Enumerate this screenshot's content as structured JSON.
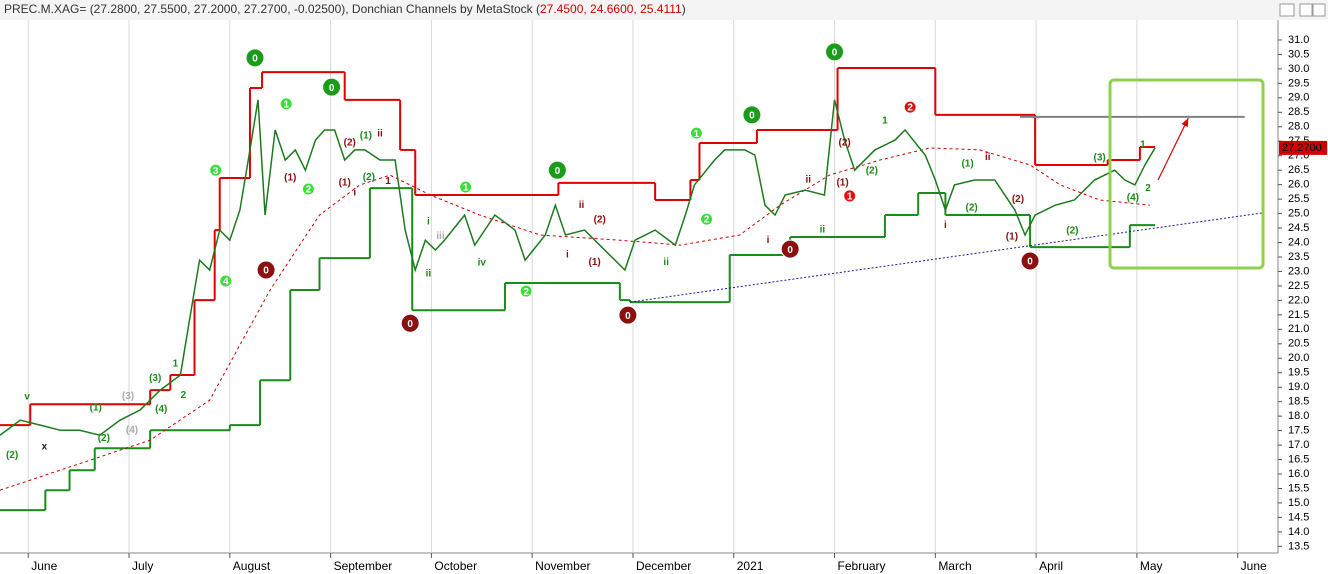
{
  "chart_data": {
    "type": "price",
    "title": "PREC.M.XAG= (27.2800, 27.5500, 27.2000, 27.2700, -0.02500), Donchian Channels by MetaStock (",
    "indicator_values": "27.4500, 24.6600, 25.4111",
    "title_end": ")",
    "last_price": {
      "value": 27.27,
      "label": "27.2700"
    },
    "xlim": [
      5.72,
      18.4
    ],
    "ylim": [
      13.27,
      31.69
    ],
    "grid": true,
    "xticks": [
      {
        "value": 6,
        "label": "June"
      },
      {
        "value": 7,
        "label": "July"
      },
      {
        "value": 8,
        "label": "August"
      },
      {
        "value": 9,
        "label": "September"
      },
      {
        "value": 10,
        "label": "October"
      },
      {
        "value": 11,
        "label": "November"
      },
      {
        "value": 12,
        "label": "December"
      },
      {
        "value": 13,
        "label": "2021"
      },
      {
        "value": 14,
        "label": "February"
      },
      {
        "value": 15,
        "label": "March"
      },
      {
        "value": 16,
        "label": "April"
      },
      {
        "value": 17,
        "label": "May"
      },
      {
        "value": 18,
        "label": "June"
      }
    ],
    "yticks": [
      {
        "value": 31,
        "label": "31.0"
      },
      30.5,
      {
        "value": 30,
        "label": "30.0"
      },
      29.5,
      {
        "value": 29,
        "label": "29.0"
      },
      28.5,
      {
        "value": 28,
        "label": "28.0"
      },
      27.5,
      {
        "value": 27,
        "label": "27.0"
      },
      26.5,
      {
        "value": 26,
        "label": "26.0"
      },
      25.5,
      {
        "value": 25,
        "label": "25.0"
      },
      24.5,
      {
        "value": 24,
        "label": "24.0"
      },
      23.5,
      {
        "value": 23,
        "label": "23.0"
      },
      22.5,
      {
        "value": 22,
        "label": "22.0"
      },
      21.5,
      {
        "value": 21,
        "label": "21.0"
      },
      20.5,
      {
        "value": 20,
        "label": "20.0"
      },
      19.5,
      {
        "value": 19,
        "label": "19.0"
      },
      18.5,
      {
        "value": 18,
        "label": "18.0"
      },
      17.5,
      {
        "value": 17,
        "label": "17.0"
      },
      16.5,
      {
        "value": 16,
        "label": "16.0"
      },
      15.5,
      {
        "value": 15,
        "label": "15.0"
      },
      14.5,
      {
        "value": 14,
        "label": "14.0"
      },
      13.5
    ],
    "series": [
      {
        "style": "step",
        "color": "#e00000",
        "width": 2,
        "x": [
          5.72,
          6.02,
          7.21,
          7.41,
          7.65,
          7.85,
          7.9,
          8.2,
          8.32,
          9.14,
          9.69,
          9.84,
          11.26,
          12.22,
          12.57,
          12.66,
          13.23,
          14.03,
          15.0,
          15.99,
          16.71,
          17.03,
          17.18
        ],
        "values": [
          17.69,
          18.41,
          18.9,
          19.42,
          22.01,
          24.43,
          26.23,
          29.34,
          29.89,
          28.93,
          27.2,
          25.64,
          26.06,
          25.47,
          26.16,
          27.44,
          27.89,
          30.03,
          28.41,
          26.68,
          26.85,
          27.3,
          27.3
        ]
      },
      {
        "style": "step",
        "color": "#1a8c1a",
        "width": 2,
        "x": [
          5.72,
          6.17,
          6.41,
          6.66,
          7.21,
          8.0,
          8.3,
          8.6,
          8.89,
          9.39,
          9.81,
          10.73,
          11.87,
          11.97,
          12.96,
          13.56,
          14.5,
          14.83,
          15.1,
          15.94,
          16.93,
          17.18
        ],
        "values": [
          14.75,
          15.44,
          16.13,
          16.89,
          17.51,
          17.69,
          19.24,
          22.36,
          23.46,
          25.88,
          21.66,
          22.6,
          22.01,
          21.94,
          23.57,
          24.19,
          24.95,
          25.71,
          24.95,
          23.84,
          24.6,
          24.6
        ]
      },
      {
        "style": "dashed",
        "color": "#cc0000",
        "width": 1,
        "x": [
          5.72,
          7.21,
          7.8,
          8.4,
          8.89,
          9.29,
          9.59,
          9.99,
          10.48,
          11.08,
          11.87,
          12.47,
          13.06,
          13.46,
          13.95,
          14.45,
          14.95,
          15.44,
          15.94,
          16.24,
          16.63,
          17.13
        ],
        "values": [
          15.44,
          17.17,
          18.55,
          22.36,
          24.95,
          25.99,
          26.33,
          25.64,
          24.95,
          24.26,
          24.08,
          23.91,
          24.26,
          25.29,
          26.33,
          26.85,
          27.27,
          27.2,
          26.68,
          25.99,
          25.47,
          25.29
        ]
      },
      {
        "style": "line",
        "color": "#1e7a1e",
        "width": 1.5,
        "x": [
          5.72,
          5.92,
          6.12,
          6.32,
          6.51,
          6.71,
          6.91,
          7.11,
          7.31,
          7.51,
          7.6,
          7.7,
          7.8,
          7.9,
          8.0,
          8.1,
          8.2,
          8.28,
          8.35,
          8.45,
          8.55,
          8.65,
          8.75,
          8.85,
          8.94,
          9.04,
          9.14,
          9.24,
          9.34,
          9.49,
          9.64,
          9.74,
          9.84,
          9.94,
          10.04,
          10.13,
          10.33,
          10.43,
          10.63,
          10.83,
          10.93,
          11.13,
          11.23,
          11.33,
          11.52,
          11.72,
          11.92,
          12.02,
          12.22,
          12.42,
          12.52,
          12.61,
          12.81,
          12.91,
          13.11,
          13.21,
          13.31,
          13.41,
          13.51,
          13.71,
          13.9,
          14.0,
          14.1,
          14.2,
          14.4,
          14.6,
          14.7,
          14.9,
          15.0,
          15.1,
          15.19,
          15.39,
          15.59,
          15.69,
          15.79,
          15.89,
          15.99,
          16.19,
          16.38,
          16.58,
          16.78,
          16.88,
          16.98,
          17.08,
          17.18
        ],
        "values": [
          17.34,
          17.86,
          17.69,
          17.51,
          17.51,
          17.34,
          17.86,
          18.21,
          18.9,
          19.42,
          21.32,
          23.39,
          23.05,
          24.43,
          24.08,
          25.12,
          27.2,
          28.93,
          24.95,
          27.89,
          26.85,
          27.2,
          26.5,
          27.54,
          27.89,
          27.89,
          26.85,
          27.2,
          27.2,
          26.85,
          26.85,
          24.43,
          23.05,
          24.08,
          23.74,
          24.08,
          24.95,
          23.91,
          24.95,
          24.43,
          23.39,
          24.26,
          25.29,
          24.26,
          24.43,
          23.74,
          23.05,
          24.08,
          24.43,
          23.91,
          24.95,
          25.99,
          26.85,
          27.2,
          27.2,
          27.02,
          25.29,
          24.95,
          25.64,
          25.81,
          25.64,
          28.93,
          27.54,
          26.5,
          27.2,
          27.54,
          27.89,
          27.02,
          26.16,
          25.12,
          25.99,
          26.16,
          26.16,
          25.64,
          25.12,
          24.26,
          24.95,
          25.29,
          25.47,
          26.16,
          26.5,
          26.16,
          25.99,
          26.68,
          27.27
        ]
      },
      {
        "style": "dotted",
        "color": "#1a1aa0",
        "width": 1,
        "x": [
          11.97,
          18.24
        ],
        "values": [
          21.94,
          25.02
        ]
      },
      {
        "style": "line",
        "color": "#808080",
        "width": 2,
        "x": [
          15.84,
          18.07
        ],
        "values": [
          28.34,
          28.34
        ]
      },
      {
        "style": "arrow",
        "color": "#e00000",
        "width": 1.2,
        "x": [
          17.21,
          17.51
        ],
        "values": [
          26.16,
          28.3
        ]
      }
    ],
    "annotations": [
      {
        "text": "0",
        "x": 8.25,
        "y": 30.38,
        "style": "big",
        "color": "#1a9c1a"
      },
      {
        "text": "0",
        "x": 9.01,
        "y": 29.37,
        "style": "big",
        "color": "#1a9c1a"
      },
      {
        "text": "0",
        "x": 11.25,
        "y": 26.5,
        "style": "big",
        "color": "#1a9c1a"
      },
      {
        "text": "0",
        "x": 13.18,
        "y": 28.41,
        "style": "big",
        "color": "#1a9c1a"
      },
      {
        "text": "0",
        "x": 14.0,
        "y": 30.59,
        "style": "big",
        "color": "#1a9c1a"
      },
      {
        "text": "0",
        "x": 8.36,
        "y": 23.05,
        "style": "big",
        "color": "#8b1010"
      },
      {
        "text": "0",
        "x": 9.79,
        "y": 21.21,
        "style": "big",
        "color": "#8b1010"
      },
      {
        "text": "0",
        "x": 11.95,
        "y": 21.49,
        "style": "big",
        "color": "#8b1010"
      },
      {
        "text": "0",
        "x": 13.56,
        "y": 23.77,
        "style": "big",
        "color": "#8b1010"
      },
      {
        "text": "0",
        "x": 15.94,
        "y": 23.36,
        "style": "big",
        "color": "#8b1010"
      },
      {
        "text": "1",
        "x": 8.56,
        "y": 28.79,
        "style": "small",
        "color": "#3ddc3d"
      },
      {
        "text": "2",
        "x": 8.78,
        "y": 25.85,
        "style": "small",
        "color": "#3ddc3d"
      },
      {
        "text": "3",
        "x": 7.86,
        "y": 26.5,
        "style": "small",
        "color": "#3ddc3d"
      },
      {
        "text": "4",
        "x": 7.96,
        "y": 22.67,
        "style": "small",
        "color": "#3ddc3d"
      },
      {
        "text": "1",
        "x": 10.34,
        "y": 25.92,
        "style": "small",
        "color": "#3ddc3d"
      },
      {
        "text": "2",
        "x": 10.94,
        "y": 22.32,
        "style": "small",
        "color": "#3ddc3d"
      },
      {
        "text": "1",
        "x": 12.63,
        "y": 27.78,
        "style": "small",
        "color": "#3ddc3d"
      },
      {
        "text": "2",
        "x": 12.73,
        "y": 24.81,
        "style": "small",
        "color": "#3ddc3d"
      },
      {
        "text": "2",
        "x": 14.75,
        "y": 28.68,
        "style": "small",
        "color": "#e01010"
      },
      {
        "text": "1",
        "x": 14.15,
        "y": 25.61,
        "style": "small",
        "color": "#e01010"
      },
      {
        "text": "(1)",
        "x": 8.6,
        "y": 26.23,
        "style": "text",
        "color": "#8b1010"
      },
      {
        "text": "(2)",
        "x": 9.19,
        "y": 27.44,
        "style": "text",
        "color": "#8b1010"
      },
      {
        "text": "(1)",
        "x": 9.14,
        "y": 26.06,
        "style": "text",
        "color": "#8b1010"
      },
      {
        "text": "ii",
        "x": 9.49,
        "y": 27.75,
        "style": "text",
        "color": "#8b1010"
      },
      {
        "text": "1",
        "x": 9.57,
        "y": 26.12,
        "style": "text",
        "color": "#8b1010"
      },
      {
        "text": "i",
        "x": 9.24,
        "y": 25.71,
        "style": "text",
        "color": "#8b1010"
      },
      {
        "text": "(2)",
        "x": 11.67,
        "y": 24.78,
        "style": "text",
        "color": "#8b1010"
      },
      {
        "text": "(1)",
        "x": 11.62,
        "y": 23.32,
        "style": "text",
        "color": "#8b1010"
      },
      {
        "text": "ii",
        "x": 11.49,
        "y": 25.29,
        "style": "text",
        "color": "#8b1010"
      },
      {
        "text": "i",
        "x": 11.35,
        "y": 23.57,
        "style": "text",
        "color": "#8b1010"
      },
      {
        "text": "(2)",
        "x": 15.82,
        "y": 25.5,
        "style": "text",
        "color": "#8b1010"
      },
      {
        "text": "(1)",
        "x": 15.76,
        "y": 24.19,
        "style": "text",
        "color": "#8b1010"
      },
      {
        "text": "ii",
        "x": 15.52,
        "y": 26.95,
        "style": "text",
        "color": "#8b1010"
      },
      {
        "text": "i",
        "x": 15.1,
        "y": 24.6,
        "style": "text",
        "color": "#8b1010"
      },
      {
        "text": "ii",
        "x": 13.74,
        "y": 26.16,
        "style": "text",
        "color": "#8b1010"
      },
      {
        "text": "i",
        "x": 13.34,
        "y": 24.08,
        "style": "text",
        "color": "#8b1010"
      },
      {
        "text": "(2)",
        "x": 14.1,
        "y": 27.44,
        "style": "text",
        "color": "#8b1010"
      },
      {
        "text": "(1)",
        "x": 14.08,
        "y": 26.06,
        "style": "text",
        "color": "#8b1010"
      },
      {
        "text": "(2)",
        "x": 5.84,
        "y": 16.65,
        "style": "text",
        "color": "#1a8c1a"
      },
      {
        "text": "(2)",
        "x": 6.75,
        "y": 17.24,
        "style": "text",
        "color": "#1a8c1a"
      },
      {
        "text": "(1)",
        "x": 6.67,
        "y": 18.28,
        "style": "text",
        "color": "#1a8c1a"
      },
      {
        "text": "(3)",
        "x": 7.26,
        "y": 19.31,
        "style": "text",
        "color": "#1a8c1a"
      },
      {
        "text": "(4)",
        "x": 7.32,
        "y": 18.24,
        "style": "text",
        "color": "#1a8c1a"
      },
      {
        "text": "2",
        "x": 7.54,
        "y": 18.72,
        "style": "text",
        "color": "#1a8c1a"
      },
      {
        "text": "1",
        "x": 7.46,
        "y": 19.8,
        "style": "text",
        "color": "#1a8c1a"
      },
      {
        "text": "(2)",
        "x": 9.38,
        "y": 26.26,
        "style": "text",
        "color": "#1a8c1a"
      },
      {
        "text": "(1)",
        "x": 9.35,
        "y": 27.68,
        "style": "text",
        "color": "#1a8c1a"
      },
      {
        "text": "iv",
        "x": 10.5,
        "y": 23.29,
        "style": "text",
        "color": "#1a8c1a"
      },
      {
        "text": "i",
        "x": 9.97,
        "y": 24.71,
        "style": "text",
        "color": "#1a8c1a"
      },
      {
        "text": "ii",
        "x": 9.97,
        "y": 22.91,
        "style": "text",
        "color": "#1a8c1a"
      },
      {
        "text": "ii",
        "x": 12.33,
        "y": 23.32,
        "style": "text",
        "color": "#1a8c1a"
      },
      {
        "text": "(2)",
        "x": 15.36,
        "y": 25.19,
        "style": "text",
        "color": "#1a8c1a"
      },
      {
        "text": "(1)",
        "x": 15.32,
        "y": 26.71,
        "style": "text",
        "color": "#1a8c1a"
      },
      {
        "text": "(2)",
        "x": 16.36,
        "y": 24.4,
        "style": "text",
        "color": "#1a8c1a"
      },
      {
        "text": "(3)",
        "x": 16.63,
        "y": 26.92,
        "style": "text",
        "color": "#1a8c1a"
      },
      {
        "text": "(4)",
        "x": 16.96,
        "y": 25.54,
        "style": "text",
        "color": "#1a8c1a"
      },
      {
        "text": "1",
        "x": 17.06,
        "y": 27.37,
        "style": "text",
        "color": "#1a8c1a"
      },
      {
        "text": "2",
        "x": 17.11,
        "y": 25.88,
        "style": "text",
        "color": "#1a8c1a"
      },
      {
        "text": "ii",
        "x": 13.88,
        "y": 24.43,
        "style": "text",
        "color": "#1a8c1a"
      },
      {
        "text": "(2)",
        "x": 14.37,
        "y": 26.47,
        "style": "text",
        "color": "#1a8c1a"
      },
      {
        "text": "1",
        "x": 14.5,
        "y": 28.2,
        "style": "text",
        "color": "#1a8c1a"
      },
      {
        "text": "v",
        "x": 5.99,
        "y": 18.66,
        "style": "text",
        "color": "#1a8c1a"
      },
      {
        "text": "(3)",
        "x": 6.99,
        "y": 18.69,
        "style": "text",
        "color": "#aaaaaa"
      },
      {
        "text": "(4)",
        "x": 7.03,
        "y": 17.51,
        "style": "text",
        "color": "#aaaaaa"
      },
      {
        "text": "iii",
        "x": 10.09,
        "y": 24.22,
        "style": "text",
        "color": "#aaaaaa"
      },
      {
        "text": "x",
        "x": 6.16,
        "y": 16.93,
        "style": "text",
        "color": "#222222"
      }
    ]
  }
}
